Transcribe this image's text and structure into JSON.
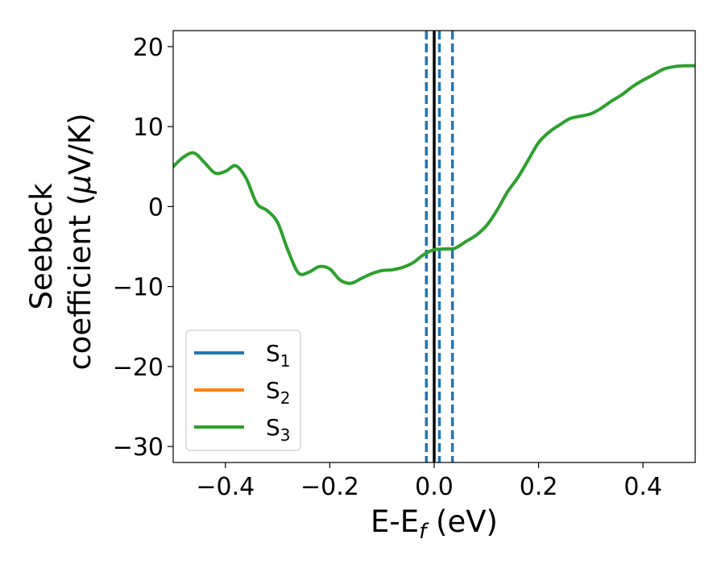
{
  "chart_data": {
    "type": "line",
    "title": "",
    "xlabel_main": "E-E",
    "xlabel_sub": "f",
    "xlabel_tail": " (eV)",
    "ylabel_line1": "Seebeck",
    "ylabel_line2_pre": "coefficient  (",
    "ylabel_line2_mu": "μ",
    "ylabel_line2_post": "V/K)",
    "xlim": [
      -0.5,
      0.5
    ],
    "ylim": [
      -32,
      22
    ],
    "xticks": [
      -0.4,
      -0.2,
      0.0,
      0.2,
      0.4
    ],
    "xtick_labels": [
      "−0.4",
      "−0.2",
      "0.0",
      "0.2",
      "0.4"
    ],
    "yticks": [
      20,
      10,
      0,
      -10,
      -20,
      -30
    ],
    "ytick_labels": [
      "20",
      "10",
      "0",
      "−10",
      "−20",
      "−30"
    ],
    "grid": false,
    "legend_position": "bottom-left",
    "fermi_line": {
      "x": 0.0,
      "color": "#000000"
    },
    "dashed_lines": {
      "x": [
        -0.015,
        0.01,
        0.035
      ],
      "color": "#1f77b4"
    },
    "series": [
      {
        "name_base": "S",
        "name_sub": "1",
        "color": "#1f77b4",
        "x": [],
        "y": []
      },
      {
        "name_base": "S",
        "name_sub": "2",
        "color": "#ff7f0e",
        "x": [],
        "y": []
      },
      {
        "name_base": "S",
        "name_sub": "3",
        "color": "#2ca02c",
        "x": [
          -0.5,
          -0.48,
          -0.46,
          -0.44,
          -0.42,
          -0.4,
          -0.38,
          -0.36,
          -0.34,
          -0.32,
          -0.3,
          -0.28,
          -0.26,
          -0.24,
          -0.22,
          -0.2,
          -0.18,
          -0.16,
          -0.14,
          -0.12,
          -0.1,
          -0.08,
          -0.06,
          -0.04,
          -0.02,
          0.0,
          0.02,
          0.04,
          0.06,
          0.08,
          0.1,
          0.12,
          0.14,
          0.16,
          0.18,
          0.2,
          0.22,
          0.24,
          0.26,
          0.28,
          0.3,
          0.32,
          0.34,
          0.36,
          0.38,
          0.4,
          0.42,
          0.44,
          0.46,
          0.48,
          0.5
        ],
        "y": [
          5.0,
          6.2,
          6.7,
          5.5,
          4.2,
          4.4,
          5.1,
          3.5,
          0.4,
          -0.5,
          -2.0,
          -5.5,
          -8.3,
          -8.2,
          -7.5,
          -7.8,
          -9.2,
          -9.6,
          -9.0,
          -8.4,
          -8.0,
          -7.9,
          -7.6,
          -7.0,
          -6.0,
          -5.4,
          -5.3,
          -5.2,
          -4.4,
          -3.6,
          -2.4,
          -0.5,
          1.8,
          3.6,
          5.8,
          8.0,
          9.3,
          10.2,
          11.0,
          11.3,
          11.6,
          12.3,
          13.2,
          14.0,
          15.0,
          15.8,
          16.5,
          17.2,
          17.5,
          17.6,
          17.6
        ]
      }
    ]
  }
}
